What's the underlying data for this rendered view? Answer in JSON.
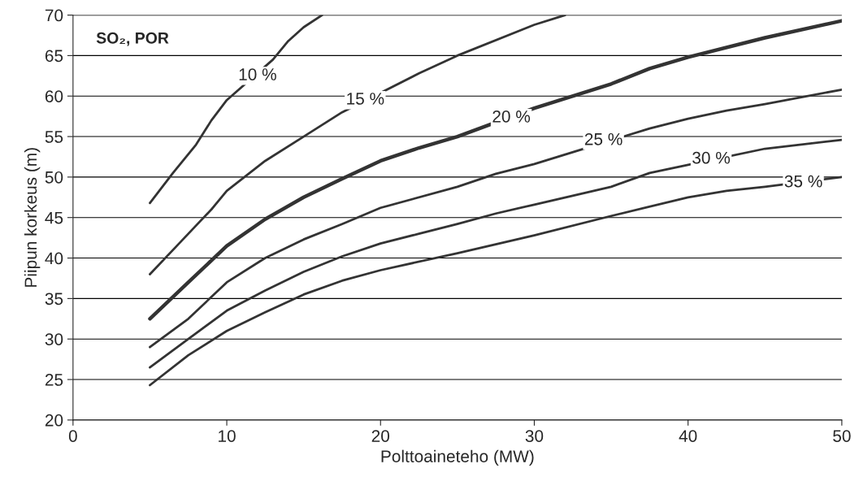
{
  "chart_data": {
    "type": "line",
    "xlabel": "Polttoaineteho (MW)",
    "ylabel": "Piipun korkeus (m)",
    "xlim": [
      0,
      50
    ],
    "xticks": [
      0,
      10,
      20,
      30,
      40,
      50
    ],
    "ylim": [
      20,
      70
    ],
    "yticks": [
      20,
      25,
      30,
      35,
      40,
      45,
      50,
      55,
      60,
      65,
      70
    ],
    "grid": "y",
    "legend": false,
    "marker": "none",
    "line_style": "solid",
    "series": [
      {
        "color": "#333333",
        "x": [
          5,
          6.5,
          8,
          9,
          10,
          13,
          14,
          15,
          16.2
        ],
        "values": [
          46.8,
          50.5,
          54,
          57,
          59.5,
          64.5,
          66.8,
          68.5,
          70
        ]
      },
      {
        "color": "#333333",
        "x": [
          5,
          7,
          9,
          10,
          12.5,
          15,
          17.5,
          22.5,
          25,
          30,
          32
        ],
        "values": [
          38,
          42,
          46,
          48.3,
          52,
          55,
          58,
          62.8,
          65,
          68.8,
          70
        ]
      },
      {
        "color": "#333333",
        "x": [
          5,
          7.5,
          10,
          12.5,
          15,
          17.5,
          20,
          22.5,
          25,
          30,
          35,
          37.5,
          40,
          45,
          50
        ],
        "values": [
          32.5,
          37,
          41.5,
          44.8,
          47.5,
          49.8,
          52,
          53.6,
          55,
          58.5,
          61.5,
          63.4,
          64.8,
          67.2,
          69.3
        ]
      },
      {
        "color": "#333333",
        "x": [
          5,
          7.5,
          10,
          12.5,
          15,
          17.5,
          20,
          25,
          27.5,
          30,
          37.5,
          40,
          42.5,
          45,
          50
        ],
        "values": [
          29,
          32.5,
          37,
          40,
          42.3,
          44.2,
          46.2,
          48.8,
          50.4,
          51.6,
          56,
          57.2,
          58.2,
          59,
          60.8
        ]
      },
      {
        "color": "#333333",
        "x": [
          5,
          7.5,
          10,
          12.5,
          15,
          17.5,
          20,
          22.5,
          25,
          27.5,
          30,
          35,
          37.5,
          40,
          45,
          50
        ],
        "values": [
          26.5,
          30,
          33.5,
          36,
          38.3,
          40.2,
          41.8,
          43,
          44.2,
          45.5,
          46.6,
          48.8,
          50.5,
          51.5,
          53.5,
          54.6
        ]
      },
      {
        "color": "#333333",
        "x": [
          5,
          7.5,
          10,
          12.5,
          15,
          17.5,
          20,
          25,
          27.5,
          30,
          35,
          40,
          42.5,
          45,
          50
        ],
        "values": [
          24.3,
          28,
          31,
          33.3,
          35.5,
          37.2,
          38.5,
          40.6,
          41.7,
          42.8,
          45.2,
          47.5,
          48.3,
          48.8,
          50
        ]
      }
    ],
    "annotations": [
      "SO₂, POR",
      {
        "text": "10 %",
        "x": 12,
        "y": 62.5
      },
      {
        "text": "15 %",
        "x": 19,
        "y": 59.5
      },
      {
        "text": "20 %",
        "x": 28.5,
        "y": 57.3
      },
      {
        "text": "25 %",
        "x": 34.5,
        "y": 54.5
      },
      {
        "text": "30 %",
        "x": 41.5,
        "y": 52.2
      },
      {
        "text": "35 %",
        "x": 47.5,
        "y": 49.3
      }
    ]
  }
}
